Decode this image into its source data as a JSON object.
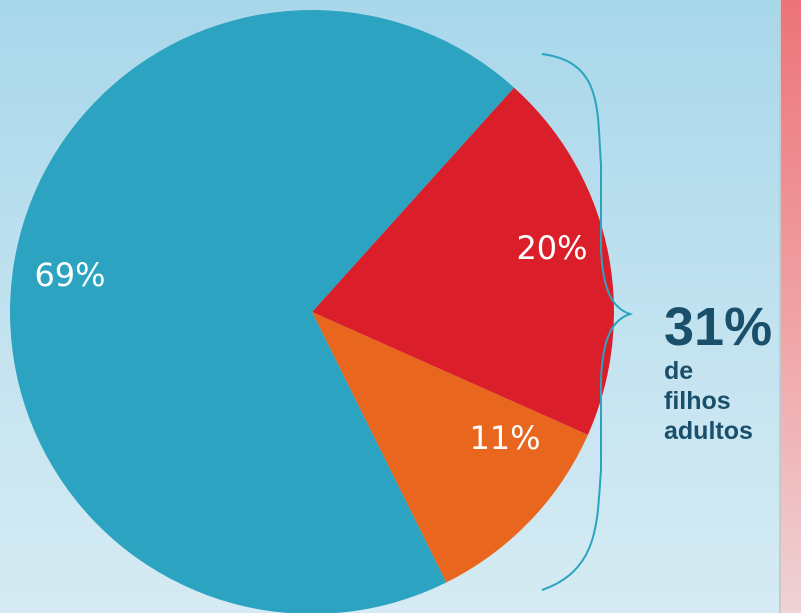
{
  "chart_data": {
    "type": "pie",
    "slices": [
      {
        "label": "69%",
        "value": 69,
        "color": "#2ca3c1"
      },
      {
        "label": "20%",
        "value": 20,
        "color": "#da1f2b"
      },
      {
        "label": "11%",
        "value": 11,
        "color": "#e9661e"
      }
    ],
    "start_angle_deg": 42,
    "callout": {
      "value": "31%",
      "text_lines": [
        "de",
        "filhos",
        "adultos"
      ],
      "color": "#1a4f6b"
    }
  },
  "colors": {
    "background": "#b7ddee",
    "side_bar": "#ec7479",
    "brace": "#2ca3c1"
  }
}
